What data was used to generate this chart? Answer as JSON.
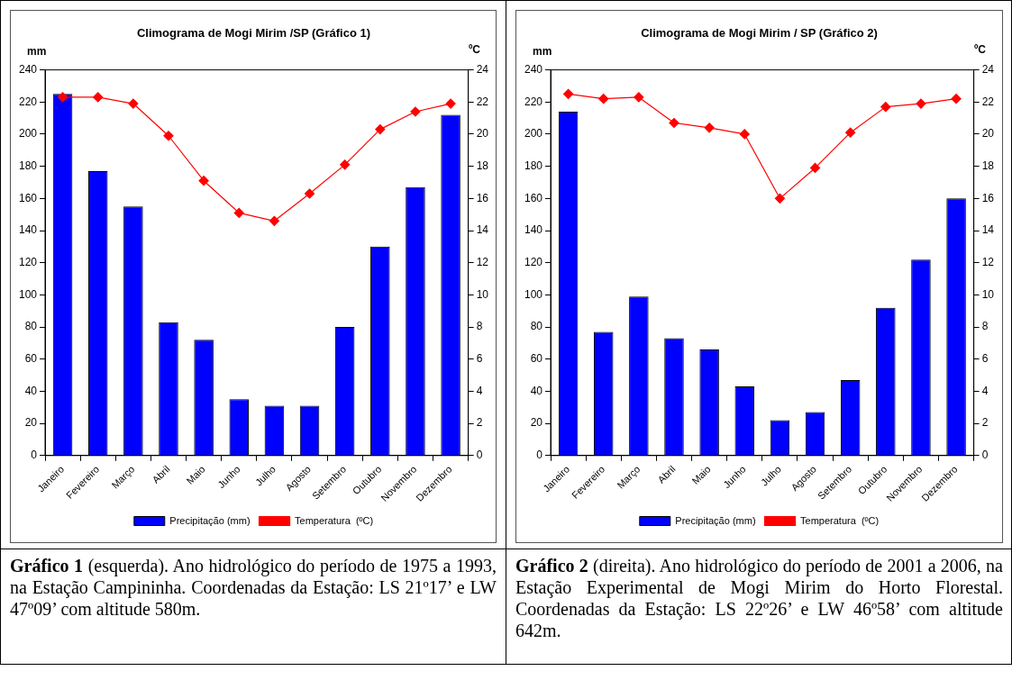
{
  "chart_data": [
    {
      "type": "bar",
      "title": "Climograma de Mogi Mirim /SP (Gráfico 1)",
      "ylabel": "mm",
      "y2label": "ºC",
      "categories": [
        "Janeiro",
        "Fevereiro",
        "Março",
        "Abril",
        "Maio",
        "Junho",
        "Julho",
        "Agosto",
        "Setembro",
        "Outubro",
        "Novembro",
        "Dezembro"
      ],
      "series": [
        {
          "name": "Precipitação (mm)",
          "color": "#0000ff",
          "values": [
            225,
            177,
            155,
            83,
            72,
            35,
            31,
            31,
            80,
            130,
            167,
            212
          ]
        },
        {
          "name": "Temperatura  (ºC)",
          "type": "line",
          "axis": "y2",
          "color": "#ff0000",
          "values": [
            22.3,
            22.3,
            21.9,
            19.9,
            17.1,
            15.1,
            14.6,
            16.3,
            18.1,
            20.3,
            21.4,
            21.9
          ]
        }
      ],
      "ylim": [
        0,
        240
      ],
      "yticks": [
        0,
        20,
        40,
        60,
        80,
        100,
        120,
        140,
        160,
        180,
        200,
        220,
        240
      ],
      "y2lim": [
        0,
        24
      ],
      "y2ticks": [
        0,
        2,
        4,
        6,
        8,
        10,
        12,
        14,
        16,
        18,
        20,
        22,
        24
      ],
      "grid": false,
      "legend": "bottom",
      "marker": "diamond",
      "annotations": [
        "Gráfico 1 (esquerda). Ano hidrológico do período de 1975 a 1993, na Estação Campininha. Coordenadas da Estação: LS 21º17’ e LW 47º09’ com altitude 580m."
      ]
    },
    {
      "type": "bar",
      "title": "Climograma de Mogi Mirim / SP (Gráfico 2)",
      "ylabel": "mm",
      "y2label": "ºC",
      "categories": [
        "Janeiro",
        "Fevereiro",
        "Março",
        "Abril",
        "Maio",
        "Junho",
        "Julho",
        "Agosto",
        "Setembro",
        "Outubro",
        "Novembro",
        "Dezembro"
      ],
      "series": [
        {
          "name": "Precipitação (mm)",
          "color": "#0000ff",
          "values": [
            214,
            77,
            99,
            73,
            66,
            43,
            22,
            27,
            47,
            92,
            122,
            160
          ]
        },
        {
          "name": "Temperatura  (ºC)",
          "type": "line",
          "axis": "y2",
          "color": "#ff0000",
          "values": [
            22.5,
            22.2,
            22.3,
            20.7,
            20.4,
            20.0,
            16.0,
            17.9,
            20.1,
            21.7,
            21.9,
            22.2
          ]
        }
      ],
      "ylim": [
        0,
        240
      ],
      "yticks": [
        0,
        20,
        40,
        60,
        80,
        100,
        120,
        140,
        160,
        180,
        200,
        220,
        240
      ],
      "y2lim": [
        0,
        24
      ],
      "y2ticks": [
        0,
        2,
        4,
        6,
        8,
        10,
        12,
        14,
        16,
        18,
        20,
        22,
        24
      ],
      "grid": false,
      "legend": "bottom",
      "marker": "diamond",
      "annotations": [
        "Gráfico 2 (direita). Ano hidrológico do período de 2001 a 2006, na Estação Experimental de Mogi Mirim do Horto Florestal. Coordenadas da Estação: LS 22º26’ e LW 46º58’ com altitude 642m."
      ]
    }
  ]
}
